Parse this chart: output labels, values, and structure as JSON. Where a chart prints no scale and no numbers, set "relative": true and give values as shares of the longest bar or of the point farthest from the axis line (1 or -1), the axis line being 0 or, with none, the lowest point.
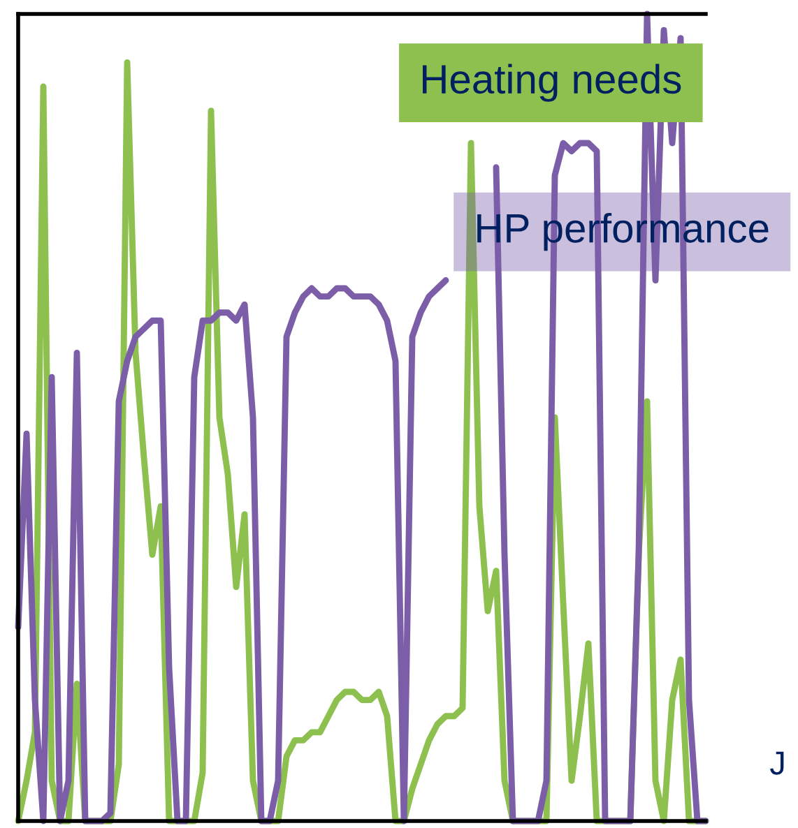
{
  "chart_data": {
    "type": "line",
    "relative": true,
    "legend": "top right",
    "categories": [
      null,
      null,
      null,
      null,
      null,
      null,
      null,
      null,
      null,
      null,
      null,
      null,
      null,
      null,
      null,
      null,
      null,
      null,
      null,
      null,
      null,
      null,
      null,
      null,
      null,
      null,
      null,
      null,
      null,
      null,
      null,
      null,
      null,
      null,
      null,
      null,
      null,
      null,
      null,
      null,
      null,
      null,
      null,
      null,
      null,
      null,
      null,
      null,
      null,
      null,
      null,
      null,
      null,
      null,
      null,
      null,
      null,
      null,
      null,
      null,
      null,
      null,
      null,
      null,
      null,
      null,
      null,
      null,
      null,
      null,
      null,
      null,
      null,
      null,
      null,
      null,
      null,
      null,
      null,
      null,
      null,
      null,
      null
    ],
    "series": [
      {
        "name": "Heating needs",
        "color": "#8dc04f",
        "values": [
          0,
          0.05,
          0.11,
          0.91,
          0.05,
          0,
          0,
          0.17,
          0,
          0,
          0,
          0,
          0.07,
          0.94,
          0.58,
          0.45,
          0.33,
          0.39,
          0,
          0,
          0,
          0,
          0.06,
          0.88,
          0.5,
          0.43,
          0.29,
          0.38,
          0.05,
          0,
          0,
          0,
          0.08,
          0.1,
          0.1,
          0.11,
          0.11,
          0.13,
          0.15,
          0.16,
          0.16,
          0.15,
          0.15,
          0.16,
          0.13,
          0,
          0,
          0.04,
          0.07,
          0.1,
          0.12,
          0.13,
          0.13,
          0.14,
          0.84,
          0.39,
          0.26,
          0.31,
          0.05,
          0,
          0,
          0,
          0,
          0,
          0.5,
          0.27,
          0.05,
          0.13,
          0.22,
          0,
          0,
          0,
          0,
          0,
          0.33,
          0.52,
          0.05,
          0,
          0.15,
          0.2,
          0,
          0,
          0
        ]
      },
      {
        "name": "HP performance",
        "color": "#7b5ea7",
        "values": [
          0.24,
          0.48,
          0.15,
          0,
          0.55,
          0,
          0.05,
          0.58,
          0,
          0,
          0,
          0.01,
          0.52,
          0.57,
          0.6,
          0.61,
          0.62,
          0.62,
          0.19,
          0,
          0,
          0.55,
          0.62,
          0.62,
          0.63,
          0.63,
          0.62,
          0.64,
          0.5,
          0,
          0,
          0.05,
          0.6,
          0.63,
          0.65,
          0.66,
          0.65,
          0.65,
          0.66,
          0.66,
          0.65,
          0.65,
          0.65,
          0.64,
          0.62,
          0.57,
          0,
          0.6,
          0.63,
          0.65,
          0.66,
          0.67,
          null,
          null,
          null,
          null,
          null,
          0.81,
          0.33,
          0,
          0,
          0,
          0,
          0.05,
          0.8,
          0.84,
          0.83,
          0.84,
          0.84,
          0.83,
          0,
          0,
          0,
          0,
          0.33,
          1,
          0.67,
          0.98,
          0.84,
          0.97,
          0.15,
          0,
          0
        ]
      }
    ],
    "annotations": [
      "J"
    ]
  }
}
